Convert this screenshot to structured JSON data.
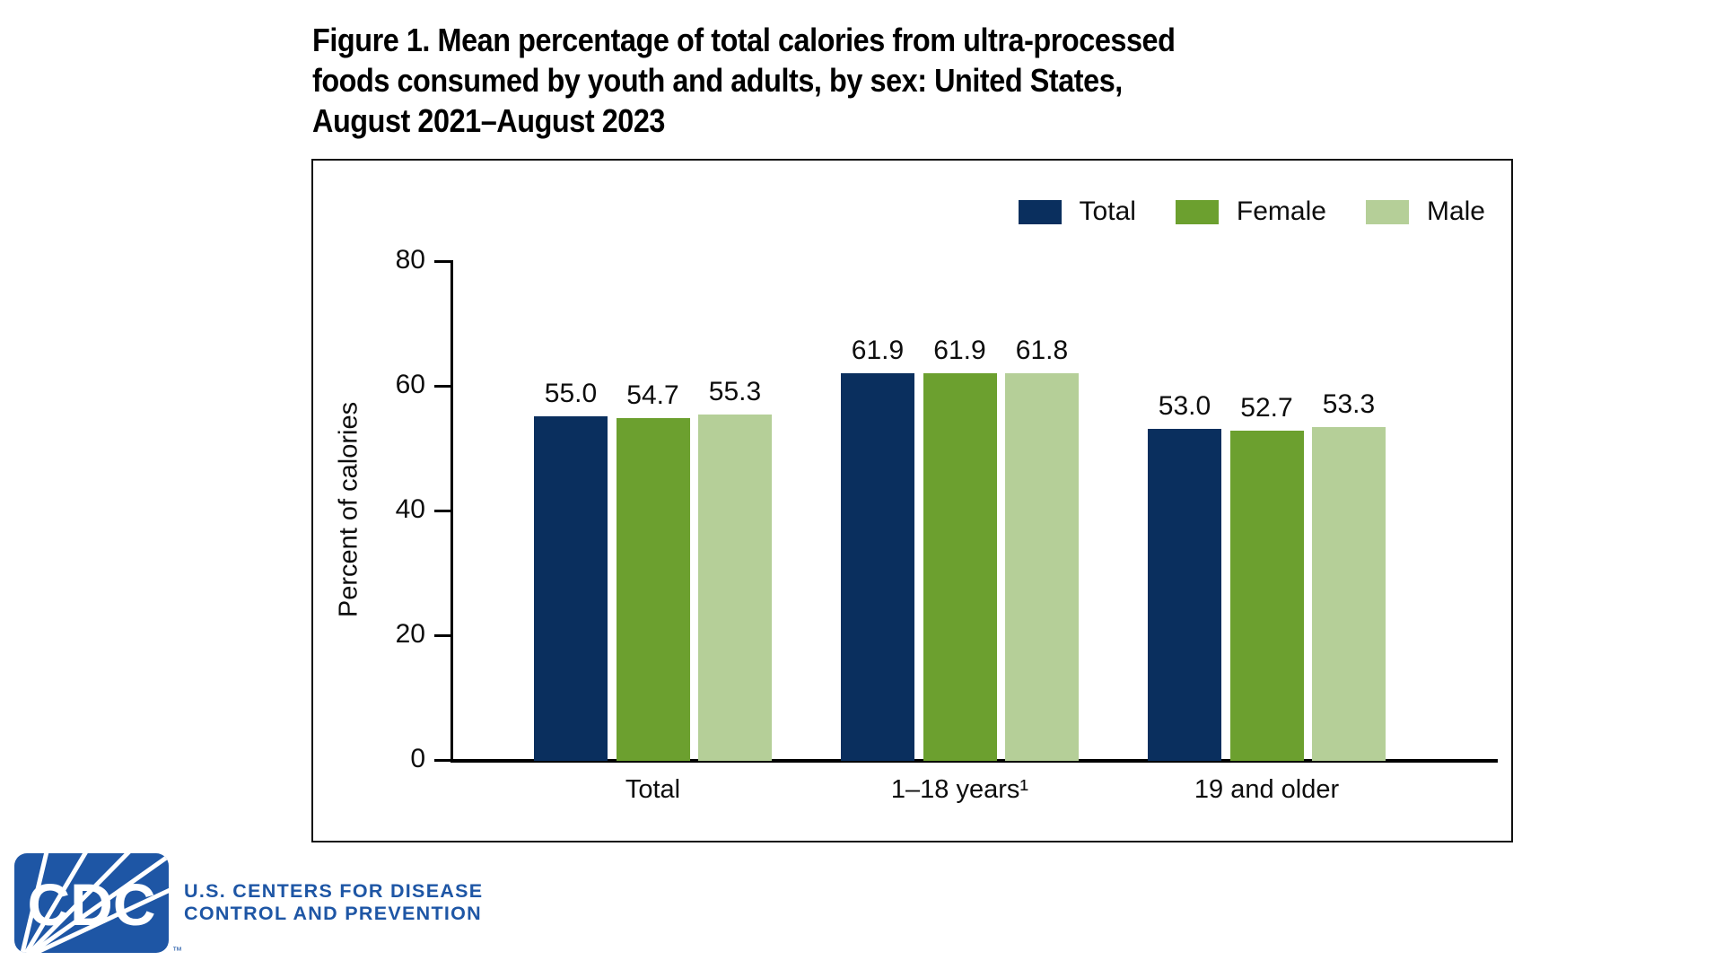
{
  "title": "Figure 1. Mean percentage of total calories from ultra-processed\nfoods consumed by youth and adults, by sex: United States,\nAugust 2021–August 2023",
  "chart_data": {
    "type": "bar",
    "title": "Figure 1. Mean percentage of total calories from ultra-processed foods consumed by youth and adults, by sex: United States, August 2021–August 2023",
    "categories": [
      "Total",
      "1–18 years¹",
      "19 and older"
    ],
    "series": [
      {
        "name": "Total",
        "color": "#0a2f5e",
        "values": [
          55.0,
          61.9,
          53.0
        ]
      },
      {
        "name": "Female",
        "color": "#6ca02f",
        "values": [
          54.7,
          61.9,
          52.7
        ]
      },
      {
        "name": "Male",
        "color": "#b5cf98",
        "values": [
          55.3,
          61.8,
          53.3
        ]
      }
    ],
    "xlabel": "",
    "ylabel": "Percent of calories",
    "ylim": [
      0,
      80
    ],
    "yticks": [
      0,
      20,
      40,
      60,
      80
    ],
    "grid": false,
    "legend_position": "top-right",
    "value_labels": true,
    "value_decimals": 1
  },
  "footer": {
    "logo_text": "CDC",
    "trademark": "™",
    "org_line1": "U.S. CENTERS FOR DISEASE",
    "org_line2": "CONTROL AND PREVENTION",
    "logo_color": "#1e56a5"
  },
  "colors": {
    "background": "#ffffff",
    "axis": "#000000",
    "frame_border": "#111111",
    "text": "#0d0d0d",
    "cdc_blue": "#1e56a5"
  }
}
